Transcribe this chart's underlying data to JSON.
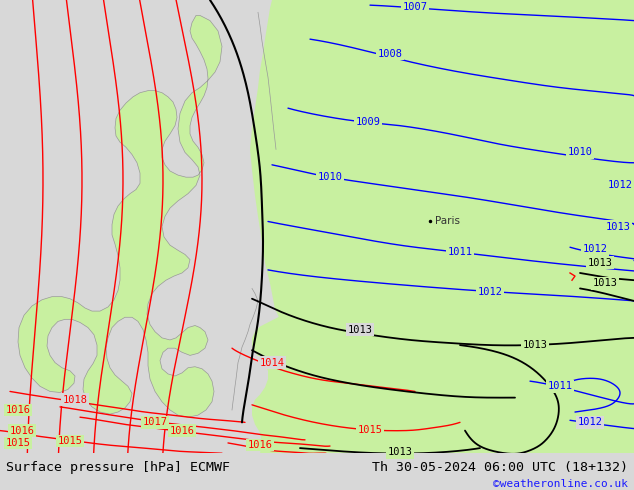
{
  "title_left": "Surface pressure [hPa] ECMWF",
  "title_right": "Th 30-05-2024 06:00 UTC (18+132)",
  "watermark": "©weatheronline.co.uk",
  "sea_color": "#d8d8d8",
  "land_color": "#c8f0a0",
  "coast_color": "#999999",
  "figsize": [
    6.34,
    4.9
  ],
  "dpi": 100,
  "title_fontsize": 9.5,
  "watermark_color": "#1a1aff",
  "watermark_fontsize": 8,
  "label_fontsize": 7.5,
  "bottom_bg": "#ffffff",
  "map_bg": "#d8d8d8"
}
